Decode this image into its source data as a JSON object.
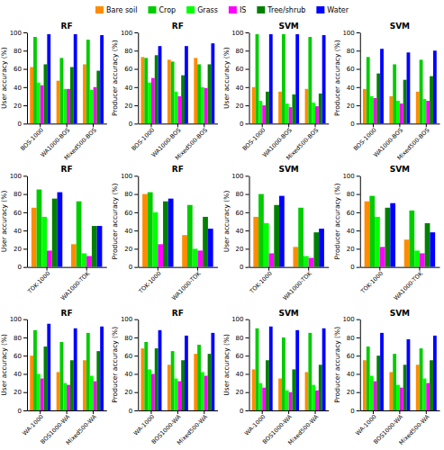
{
  "chart_data": [
    {
      "type": "bar",
      "title": "RF",
      "y_label": "User accuracy (%)",
      "categories": [
        "BOS-1000",
        "WA1000-BOS",
        "Mixed500-BOS"
      ],
      "ylim": [
        0,
        100
      ],
      "yticks": [
        0,
        20,
        40,
        60,
        80,
        100
      ],
      "legend": "top",
      "series": [
        {
          "name": "Bare soil",
          "color": "#FF8C00",
          "values": [
            62,
            47,
            65
          ]
        },
        {
          "name": "Crop",
          "color": "#00CC00",
          "values": [
            95,
            72,
            92
          ]
        },
        {
          "name": "Grass",
          "color": "#00FF00",
          "values": [
            45,
            38,
            37
          ]
        },
        {
          "name": "IS",
          "color": "#FF00FF",
          "values": [
            42,
            38,
            40
          ]
        },
        {
          "name": "Tree/shrub",
          "color": "#008000",
          "values": [
            65,
            62,
            58
          ]
        },
        {
          "name": "Water",
          "color": "#0000FF",
          "values": [
            98,
            98,
            97
          ]
        }
      ]
    },
    {
      "type": "bar",
      "title": "RF",
      "y_label": "Producer accuracy (%)",
      "categories": [
        "BOS-1000",
        "WA1000-BOS",
        "Mixed500-BOS"
      ],
      "ylim": [
        0,
        100
      ],
      "yticks": [
        0,
        20,
        40,
        60,
        80,
        100
      ],
      "series": [
        {
          "name": "Bare soil",
          "color": "#FF8C00",
          "values": [
            73,
            70,
            72
          ]
        },
        {
          "name": "Crop",
          "color": "#00CC00",
          "values": [
            72,
            68,
            65
          ]
        },
        {
          "name": "Grass",
          "color": "#00FF00",
          "values": [
            45,
            35,
            40
          ]
        },
        {
          "name": "IS",
          "color": "#FF00FF",
          "values": [
            50,
            30,
            39
          ]
        },
        {
          "name": "Tree/shrub",
          "color": "#008000",
          "values": [
            75,
            53,
            65
          ]
        },
        {
          "name": "Water",
          "color": "#0000FF",
          "values": [
            85,
            85,
            88
          ]
        }
      ]
    },
    {
      "type": "bar",
      "title": "SVM",
      "y_label": "User accuracy (%)",
      "categories": [
        "BOS-1000",
        "WA1000-BOS",
        "Mixed500-BOS"
      ],
      "ylim": [
        0,
        100
      ],
      "yticks": [
        0,
        20,
        40,
        60,
        80,
        100
      ],
      "series": [
        {
          "name": "Bare soil",
          "color": "#FF8C00",
          "values": [
            40,
            35,
            38
          ]
        },
        {
          "name": "Crop",
          "color": "#00CC00",
          "values": [
            98,
            98,
            95
          ]
        },
        {
          "name": "Grass",
          "color": "#00FF00",
          "values": [
            25,
            22,
            23
          ]
        },
        {
          "name": "IS",
          "color": "#FF00FF",
          "values": [
            20,
            18,
            19
          ]
        },
        {
          "name": "Tree/shrub",
          "color": "#008000",
          "values": [
            35,
            32,
            33
          ]
        },
        {
          "name": "Water",
          "color": "#0000FF",
          "values": [
            98,
            98,
            97
          ]
        }
      ]
    },
    {
      "type": "bar",
      "title": "SVM",
      "y_label": "Producer accuracy (%)",
      "categories": [
        "BOS-1000",
        "WA1000-BOS",
        "Mixed500-BOS"
      ],
      "ylim": [
        0,
        100
      ],
      "yticks": [
        0,
        20,
        40,
        60,
        80,
        100
      ],
      "series": [
        {
          "name": "Bare soil",
          "color": "#FF8C00",
          "values": [
            38,
            30,
            35
          ]
        },
        {
          "name": "Crop",
          "color": "#00CC00",
          "values": [
            73,
            65,
            70
          ]
        },
        {
          "name": "Grass",
          "color": "#00FF00",
          "values": [
            30,
            25,
            27
          ]
        },
        {
          "name": "IS",
          "color": "#FF00FF",
          "values": [
            28,
            22,
            25
          ]
        },
        {
          "name": "Tree/shrub",
          "color": "#008000",
          "values": [
            55,
            48,
            52
          ]
        },
        {
          "name": "Water",
          "color": "#0000FF",
          "values": [
            82,
            78,
            80
          ]
        }
      ]
    },
    {
      "type": "bar",
      "title": "RF",
      "y_label": "User accuracy (%)",
      "categories": [
        "TOK-1000",
        "WA1000-TOK"
      ],
      "ylim": [
        0,
        100
      ],
      "yticks": [
        0,
        20,
        40,
        60,
        80,
        100
      ],
      "series": [
        {
          "name": "Bare soil",
          "color": "#FF8C00",
          "values": [
            65,
            25
          ]
        },
        {
          "name": "Crop",
          "color": "#00CC00",
          "values": [
            85,
            72
          ]
        },
        {
          "name": "Grass",
          "color": "#00FF00",
          "values": [
            55,
            15
          ]
        },
        {
          "name": "IS",
          "color": "#FF00FF",
          "values": [
            18,
            12
          ]
        },
        {
          "name": "Tree/shrub",
          "color": "#008000",
          "values": [
            75,
            45
          ]
        },
        {
          "name": "Water",
          "color": "#0000FF",
          "values": [
            82,
            45
          ]
        }
      ]
    },
    {
      "type": "bar",
      "title": "RF",
      "y_label": "Producer accuracy (%)",
      "categories": [
        "TOK-1000",
        "WA1000-TOK"
      ],
      "ylim": [
        0,
        100
      ],
      "yticks": [
        0,
        20,
        40,
        60,
        80,
        100
      ],
      "series": [
        {
          "name": "Bare soil",
          "color": "#FF8C00",
          "values": [
            80,
            35
          ]
        },
        {
          "name": "Crop",
          "color": "#00CC00",
          "values": [
            82,
            68
          ]
        },
        {
          "name": "Grass",
          "color": "#00FF00",
          "values": [
            60,
            20
          ]
        },
        {
          "name": "IS",
          "color": "#FF00FF",
          "values": [
            25,
            18
          ]
        },
        {
          "name": "Tree/shrub",
          "color": "#008000",
          "values": [
            72,
            55
          ]
        },
        {
          "name": "Water",
          "color": "#0000FF",
          "values": [
            75,
            42
          ]
        }
      ]
    },
    {
      "type": "bar",
      "title": "SVM",
      "y_label": "User accuracy (%)",
      "categories": [
        "TOK-1000",
        "WA1000-TOK"
      ],
      "ylim": [
        0,
        100
      ],
      "yticks": [
        0,
        20,
        40,
        60,
        80,
        100
      ],
      "series": [
        {
          "name": "Bare soil",
          "color": "#FF8C00",
          "values": [
            55,
            22
          ]
        },
        {
          "name": "Crop",
          "color": "#00CC00",
          "values": [
            80,
            65
          ]
        },
        {
          "name": "Grass",
          "color": "#00FF00",
          "values": [
            48,
            12
          ]
        },
        {
          "name": "IS",
          "color": "#FF00FF",
          "values": [
            15,
            10
          ]
        },
        {
          "name": "Tree/shrub",
          "color": "#008000",
          "values": [
            68,
            38
          ]
        },
        {
          "name": "Water",
          "color": "#0000FF",
          "values": [
            78,
            42
          ]
        }
      ]
    },
    {
      "type": "bar",
      "title": "SVM",
      "y_label": "Producer accuracy (%)",
      "categories": [
        "TOK-1000",
        "WA1000-TOK"
      ],
      "ylim": [
        0,
        100
      ],
      "yticks": [
        0,
        20,
        40,
        60,
        80,
        100
      ],
      "series": [
        {
          "name": "Bare soil",
          "color": "#FF8C00",
          "values": [
            72,
            30
          ]
        },
        {
          "name": "Crop",
          "color": "#00CC00",
          "values": [
            78,
            62
          ]
        },
        {
          "name": "Grass",
          "color": "#00FF00",
          "values": [
            55,
            18
          ]
        },
        {
          "name": "IS",
          "color": "#FF00FF",
          "values": [
            22,
            15
          ]
        },
        {
          "name": "Tree/shrub",
          "color": "#008000",
          "values": [
            65,
            48
          ]
        },
        {
          "name": "Water",
          "color": "#0000FF",
          "values": [
            70,
            38
          ]
        }
      ]
    },
    {
      "type": "bar",
      "title": "RF",
      "y_label": "User accuracy (%)",
      "categories": [
        "WA-1000",
        "BOS1000-WA",
        "Mixed500-WA"
      ],
      "ylim": [
        0,
        100
      ],
      "yticks": [
        0,
        20,
        40,
        60,
        80,
        100
      ],
      "series": [
        {
          "name": "Bare soil",
          "color": "#FF8C00",
          "values": [
            60,
            42,
            55
          ]
        },
        {
          "name": "Crop",
          "color": "#00CC00",
          "values": [
            88,
            75,
            85
          ]
        },
        {
          "name": "Grass",
          "color": "#00FF00",
          "values": [
            40,
            30,
            38
          ]
        },
        {
          "name": "IS",
          "color": "#FF00FF",
          "values": [
            35,
            28,
            32
          ]
        },
        {
          "name": "Tree/shrub",
          "color": "#008000",
          "values": [
            70,
            55,
            65
          ]
        },
        {
          "name": "Water",
          "color": "#0000FF",
          "values": [
            95,
            90,
            92
          ]
        }
      ]
    },
    {
      "type": "bar",
      "title": "RF",
      "y_label": "Producer accuracy (%)",
      "categories": [
        "WA-1000",
        "BOS1000-WA",
        "Mixed500-WA"
      ],
      "ylim": [
        0,
        100
      ],
      "yticks": [
        0,
        20,
        40,
        60,
        80,
        100
      ],
      "series": [
        {
          "name": "Bare soil",
          "color": "#FF8C00",
          "values": [
            68,
            50,
            62
          ]
        },
        {
          "name": "Crop",
          "color": "#00CC00",
          "values": [
            75,
            65,
            72
          ]
        },
        {
          "name": "Grass",
          "color": "#00FF00",
          "values": [
            45,
            35,
            42
          ]
        },
        {
          "name": "IS",
          "color": "#FF00FF",
          "values": [
            40,
            32,
            38
          ]
        },
        {
          "name": "Tree/shrub",
          "color": "#008000",
          "values": [
            68,
            55,
            62
          ]
        },
        {
          "name": "Water",
          "color": "#0000FF",
          "values": [
            88,
            82,
            85
          ]
        }
      ]
    },
    {
      "type": "bar",
      "title": "SVM",
      "y_label": "User accuracy (%)",
      "categories": [
        "WA-1000",
        "BOS1000-WA",
        "Mixed500-WA"
      ],
      "ylim": [
        0,
        100
      ],
      "yticks": [
        0,
        20,
        40,
        60,
        80,
        100
      ],
      "series": [
        {
          "name": "Bare soil",
          "color": "#FF8C00",
          "values": [
            45,
            35,
            42
          ]
        },
        {
          "name": "Crop",
          "color": "#00CC00",
          "values": [
            90,
            80,
            85
          ]
        },
        {
          "name": "Grass",
          "color": "#00FF00",
          "values": [
            30,
            22,
            28
          ]
        },
        {
          "name": "IS",
          "color": "#FF00FF",
          "values": [
            25,
            20,
            22
          ]
        },
        {
          "name": "Tree/shrub",
          "color": "#008000",
          "values": [
            55,
            45,
            50
          ]
        },
        {
          "name": "Water",
          "color": "#0000FF",
          "values": [
            92,
            88,
            90
          ]
        }
      ]
    },
    {
      "type": "bar",
      "title": "SVM",
      "y_label": "Producer accuracy (%)",
      "categories": [
        "WA-1000",
        "BOS1000-WA",
        "Mixed500-WA"
      ],
      "ylim": [
        0,
        100
      ],
      "yticks": [
        0,
        20,
        40,
        60,
        80,
        100
      ],
      "series": [
        {
          "name": "Bare soil",
          "color": "#FF8C00",
          "values": [
            55,
            42,
            50
          ]
        },
        {
          "name": "Crop",
          "color": "#00CC00",
          "values": [
            70,
            62,
            68
          ]
        },
        {
          "name": "Grass",
          "color": "#00FF00",
          "values": [
            38,
            28,
            35
          ]
        },
        {
          "name": "IS",
          "color": "#FF00FF",
          "values": [
            32,
            25,
            30
          ]
        },
        {
          "name": "Tree/shrub",
          "color": "#008000",
          "values": [
            60,
            50,
            55
          ]
        },
        {
          "name": "Water",
          "color": "#0000FF",
          "values": [
            85,
            78,
            82
          ]
        }
      ]
    }
  ]
}
